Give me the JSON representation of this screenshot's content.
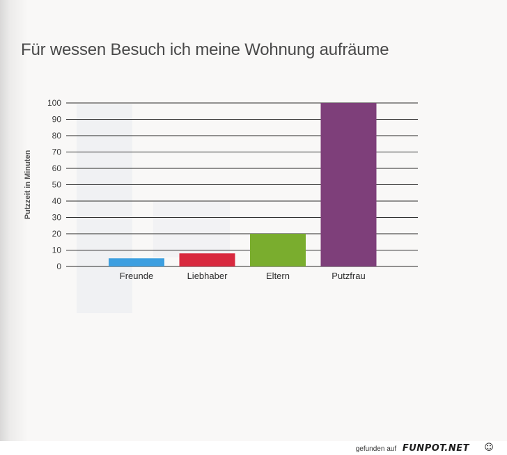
{
  "chart_data": {
    "type": "bar",
    "title": "Für wessen Besuch ich meine Wohnung aufräume",
    "xlabel": "",
    "ylabel": "Putzzeit in Minuten",
    "categories": [
      "Freunde",
      "Liebhaber",
      "Eltern",
      "Putzfrau"
    ],
    "values": [
      5,
      8,
      20,
      100
    ],
    "colors": [
      "#3d9fe0",
      "#d8293e",
      "#7aad2e",
      "#7e3f7a"
    ],
    "ylim": [
      0,
      100
    ],
    "yticks": [
      0,
      10,
      20,
      30,
      40,
      50,
      60,
      70,
      80,
      90,
      100
    ],
    "grid": true,
    "legend": "none"
  },
  "footer": {
    "prefix": "gefunden auf",
    "brand": "FUNPOT.NET",
    "logo_icon": "alien-face-icon",
    "logo_glyph": "☺"
  }
}
